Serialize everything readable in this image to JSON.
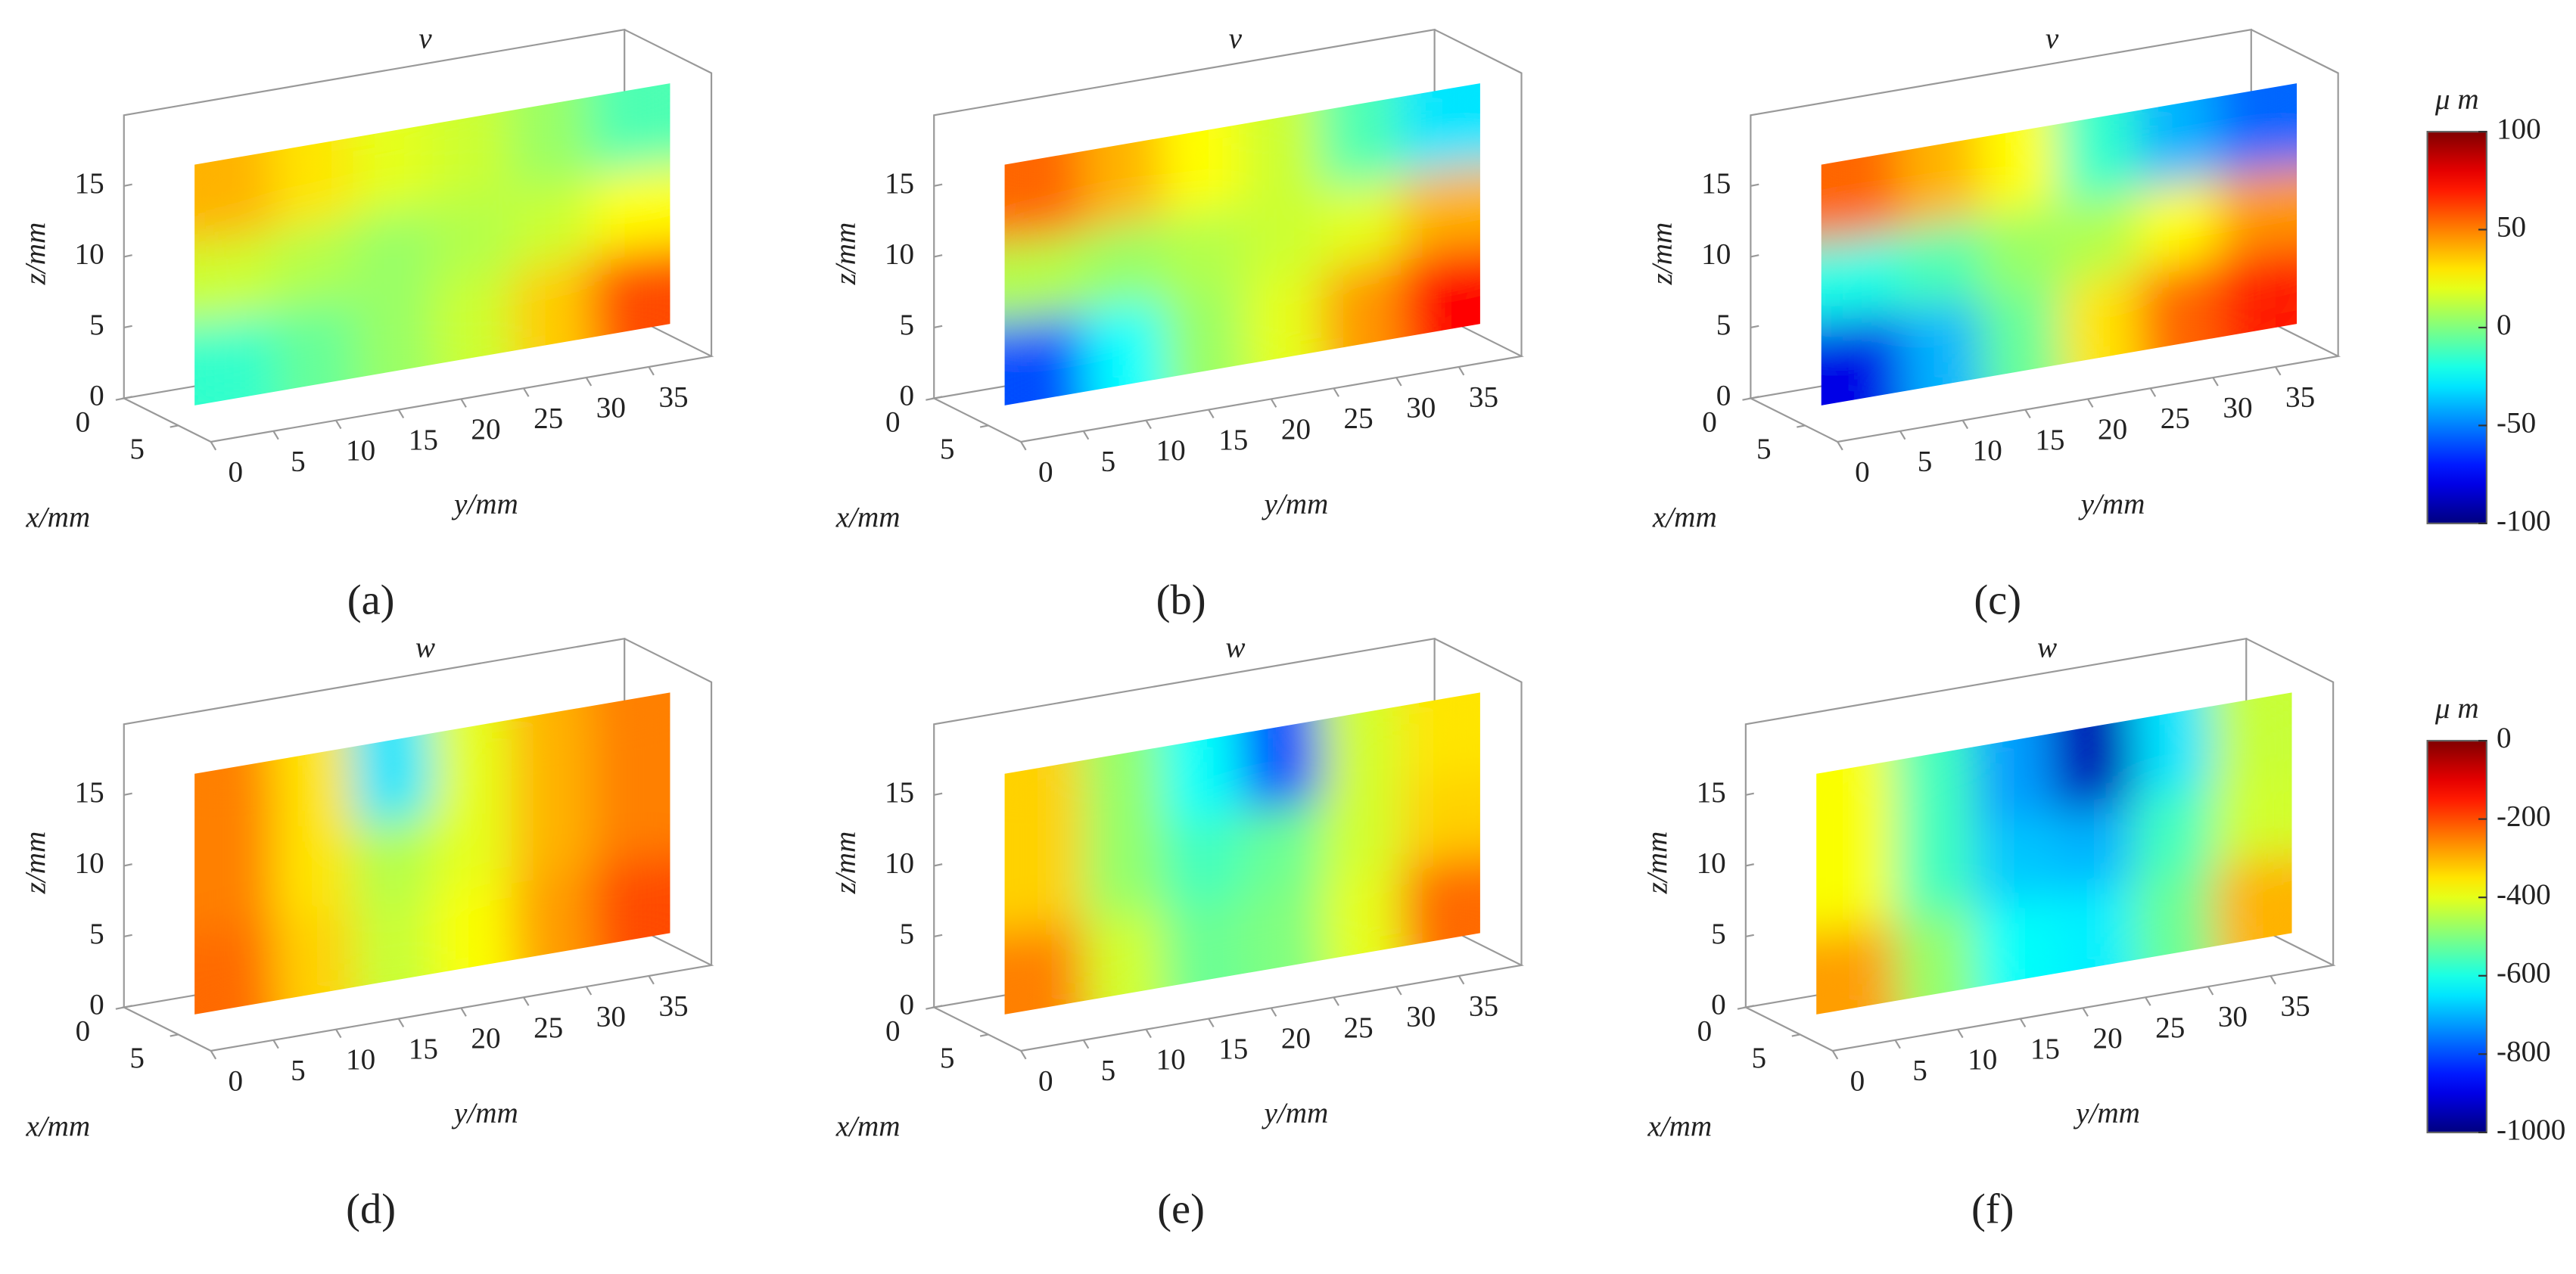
{
  "chart_data": [
    {
      "type": "surface3d",
      "title": "v",
      "label": "(a)",
      "xlabel": "x/mm",
      "ylabel": "y/mm",
      "zlabel": "z/mm",
      "xlim": [
        0,
        8
      ],
      "xticks": [
        0,
        5
      ],
      "ylim": [
        0,
        40
      ],
      "yticks": [
        0,
        5,
        10,
        15,
        20,
        25,
        30,
        35
      ],
      "zlim": [
        0,
        20
      ],
      "zticks": [
        0,
        5,
        10,
        15
      ],
      "clim": [
        -100,
        100
      ],
      "values": [
        [
          40,
          30,
          20,
          15,
          5,
          -10
        ],
        [
          15,
          10,
          5,
          10,
          15,
          25
        ],
        [
          -15,
          -5,
          5,
          15,
          35,
          60
        ]
      ]
    },
    {
      "type": "surface3d",
      "title": "v",
      "label": "(b)",
      "xlabel": "x/mm",
      "ylabel": "y/mm",
      "zlabel": "z/mm",
      "xlim": [
        0,
        8
      ],
      "xticks": [
        0,
        5
      ],
      "ylim": [
        0,
        40
      ],
      "yticks": [
        0,
        5,
        10,
        15,
        20,
        25,
        30,
        35
      ],
      "zlim": [
        0,
        20
      ],
      "zticks": [
        0,
        5,
        10,
        15
      ],
      "clim": [
        -100,
        100
      ],
      "values": [
        [
          55,
          40,
          25,
          15,
          -10,
          -30
        ],
        [
          10,
          5,
          10,
          15,
          20,
          40
        ],
        [
          -60,
          -25,
          5,
          20,
          45,
          75
        ]
      ]
    },
    {
      "type": "surface3d",
      "title": "v",
      "label": "(c)",
      "xlabel": "x/mm",
      "ylabel": "y/mm",
      "zlabel": "z/mm",
      "xlim": [
        0,
        8
      ],
      "xticks": [
        0,
        5
      ],
      "ylim": [
        0,
        40
      ],
      "yticks": [
        0,
        5,
        10,
        15,
        20,
        25,
        30,
        35
      ],
      "zlim": [
        0,
        20
      ],
      "zticks": [
        0,
        5,
        10,
        15
      ],
      "clim": [
        -100,
        100
      ],
      "values": [
        [
          55,
          40,
          25,
          -15,
          -40,
          -55
        ],
        [
          -20,
          -10,
          5,
          10,
          25,
          45
        ],
        [
          -80,
          -40,
          -5,
          30,
          55,
          70
        ]
      ],
      "colorbar": {
        "label": "μ m",
        "ticks": [
          100,
          50,
          0,
          -50,
          -100
        ]
      }
    },
    {
      "type": "surface3d",
      "title": "w",
      "label": "(d)",
      "xlabel": "x/mm",
      "ylabel": "y/mm",
      "zlabel": "z/mm",
      "xlim": [
        0,
        8
      ],
      "xticks": [
        0,
        5
      ],
      "ylim": [
        0,
        40
      ],
      "yticks": [
        0,
        5,
        10,
        15,
        20,
        25,
        30,
        35
      ],
      "zlim": [
        0,
        20
      ],
      "zticks": [
        0,
        5,
        10,
        15
      ],
      "clim": [
        -1000,
        0
      ],
      "values": [
        [
          -250,
          -350,
          -650,
          -400,
          -300,
          -250
        ],
        [
          -250,
          -350,
          -450,
          -400,
          -300,
          -250
        ],
        [
          -230,
          -330,
          -430,
          -380,
          -280,
          -200
        ]
      ]
    },
    {
      "type": "surface3d",
      "title": "w",
      "label": "(e)",
      "xlabel": "x/mm",
      "ylabel": "y/mm",
      "zlabel": "z/mm",
      "xlim": [
        0,
        8
      ],
      "xticks": [
        0,
        5
      ],
      "ylim": [
        0,
        40
      ],
      "yticks": [
        0,
        5,
        10,
        15,
        20,
        25,
        30,
        35
      ],
      "zlim": [
        0,
        20
      ],
      "zticks": [
        0,
        5,
        10,
        15
      ],
      "clim": [
        -1000,
        0
      ],
      "values": [
        [
          -330,
          -480,
          -620,
          -800,
          -420,
          -350
        ],
        [
          -330,
          -480,
          -560,
          -520,
          -420,
          -330
        ],
        [
          -250,
          -420,
          -520,
          -500,
          -400,
          -230
        ]
      ]
    },
    {
      "type": "surface3d",
      "title": "w",
      "label": "(f)",
      "xlabel": "x/mm",
      "ylabel": "y/mm",
      "zlabel": "z/mm",
      "xlim": [
        0,
        8
      ],
      "xticks": [
        0,
        5
      ],
      "ylim": [
        0,
        40
      ],
      "yticks": [
        0,
        5,
        10,
        15,
        20,
        25,
        30,
        35
      ],
      "zlim": [
        0,
        20
      ],
      "zticks": [
        0,
        5,
        10,
        15
      ],
      "clim": [
        -1000,
        0
      ],
      "values": [
        [
          -380,
          -560,
          -720,
          -950,
          -650,
          -430
        ],
        [
          -380,
          -560,
          -680,
          -700,
          -560,
          -420
        ],
        [
          -280,
          -480,
          -620,
          -640,
          -520,
          -300
        ]
      ],
      "colorbar": {
        "label": "μ m",
        "ticks": [
          0,
          -200,
          -400,
          -600,
          -800,
          -1000
        ]
      }
    }
  ]
}
